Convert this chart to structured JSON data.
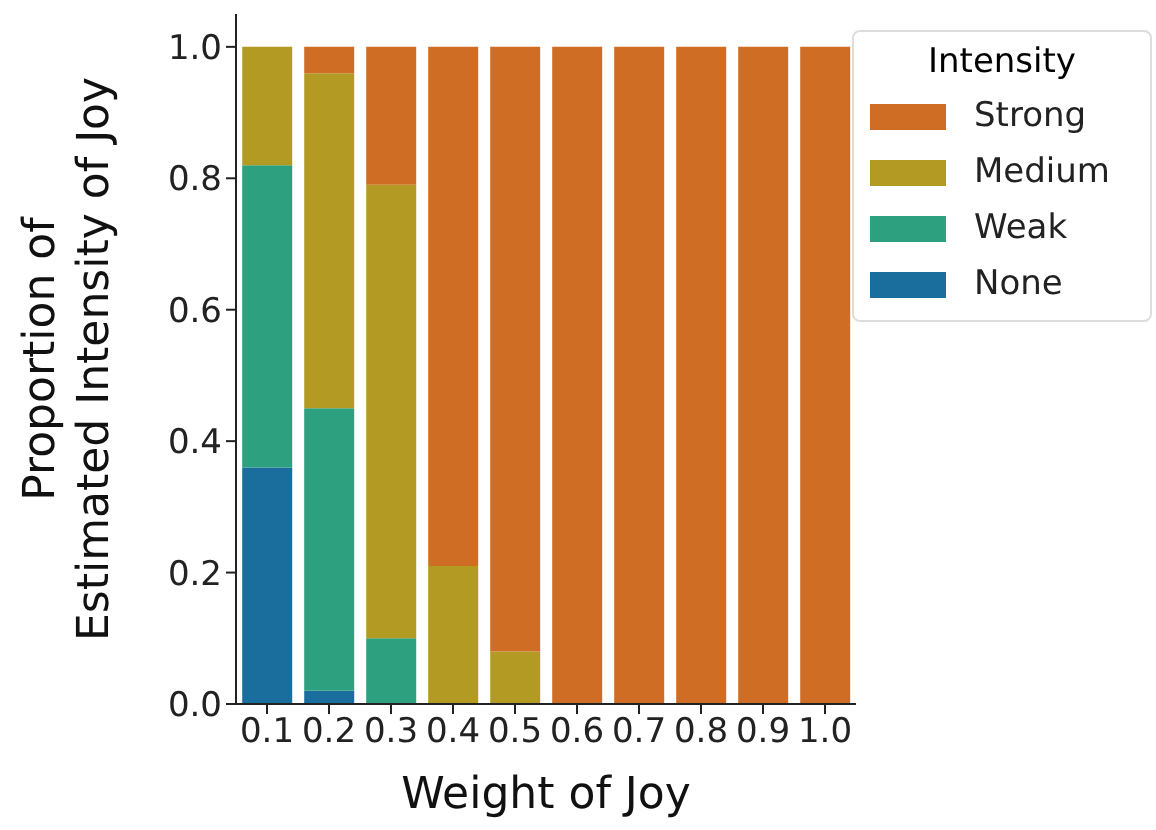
{
  "chart_data": {
    "type": "bar",
    "stacked": true,
    "xlabel": "Weight of Joy",
    "ylabel": "Proportion of\nEstimated Intensity of Joy",
    "legend_title": "Intensity",
    "legend": "top right",
    "categories": [
      "0.1",
      "0.2",
      "0.3",
      "0.4",
      "0.5",
      "0.6",
      "0.7",
      "0.8",
      "0.9",
      "1.0"
    ],
    "series": [
      {
        "name": "None",
        "color": "#1a6e9e",
        "values": [
          0.36,
          0.02,
          0,
          0,
          0,
          0,
          0,
          0,
          0,
          0
        ]
      },
      {
        "name": "Weak",
        "color": "#2ca07f",
        "values": [
          0.46,
          0.43,
          0.1,
          0,
          0,
          0,
          0,
          0,
          0,
          0
        ]
      },
      {
        "name": "Medium",
        "color": "#b39b23",
        "values": [
          0.18,
          0.51,
          0.69,
          0.21,
          0.08,
          0,
          0,
          0,
          0,
          0
        ]
      },
      {
        "name": "Strong",
        "color": "#d06d25",
        "values": [
          0,
          0.04,
          0.21,
          0.79,
          0.92,
          1,
          1,
          1,
          1,
          1
        ]
      }
    ],
    "ylim": [
      0,
      1.05
    ],
    "yticks": [
      {
        "value": 0,
        "label": "0.0"
      },
      {
        "value": 0.2,
        "label": "0.2"
      },
      {
        "value": 0.4,
        "label": "0.4"
      },
      {
        "value": 0.6,
        "label": "0.6"
      },
      {
        "value": 0.8,
        "label": "0.8"
      },
      {
        "value": 1,
        "label": "1.0"
      }
    ],
    "grid": false
  }
}
